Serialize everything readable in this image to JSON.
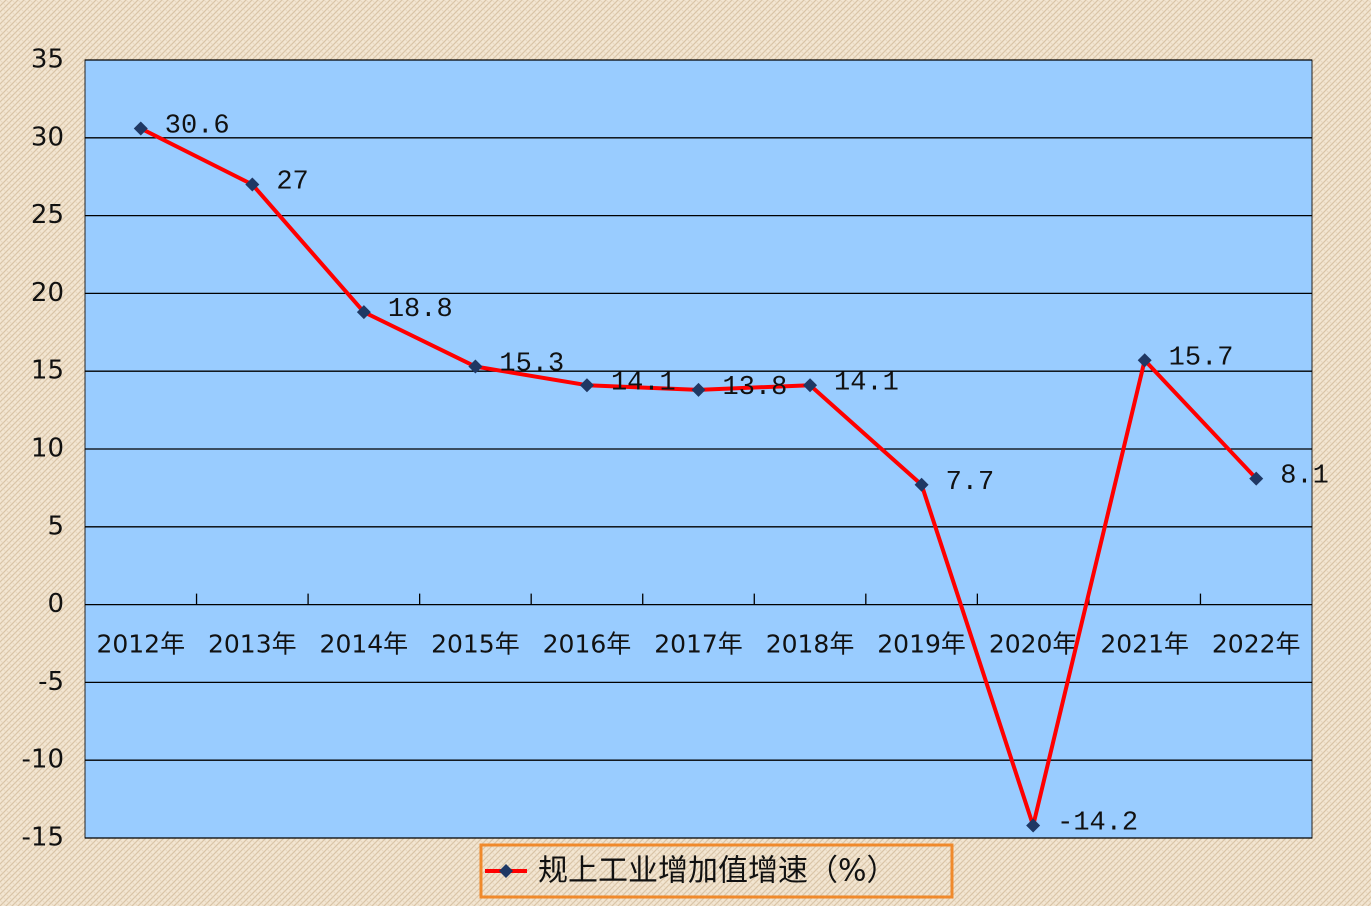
{
  "chart_data": {
    "type": "line",
    "categories": [
      "2012年",
      "2013年",
      "2014年",
      "2015年",
      "2016年",
      "2017年",
      "2018年",
      "2019年",
      "2020年",
      "2021年",
      "2022年"
    ],
    "series": [
      {
        "name": "规上工业增加值增速（%）",
        "color": "#ff0000",
        "marker_color": "#1f3864",
        "values": [
          30.6,
          27,
          18.8,
          15.3,
          14.1,
          13.8,
          14.1,
          7.7,
          -14.2,
          15.7,
          8.1
        ]
      }
    ],
    "ylim": [
      -15,
      35
    ],
    "yticks": [
      -15,
      -10,
      -5,
      0,
      5,
      10,
      15,
      20,
      25,
      30,
      35
    ],
    "grid": true
  }
}
